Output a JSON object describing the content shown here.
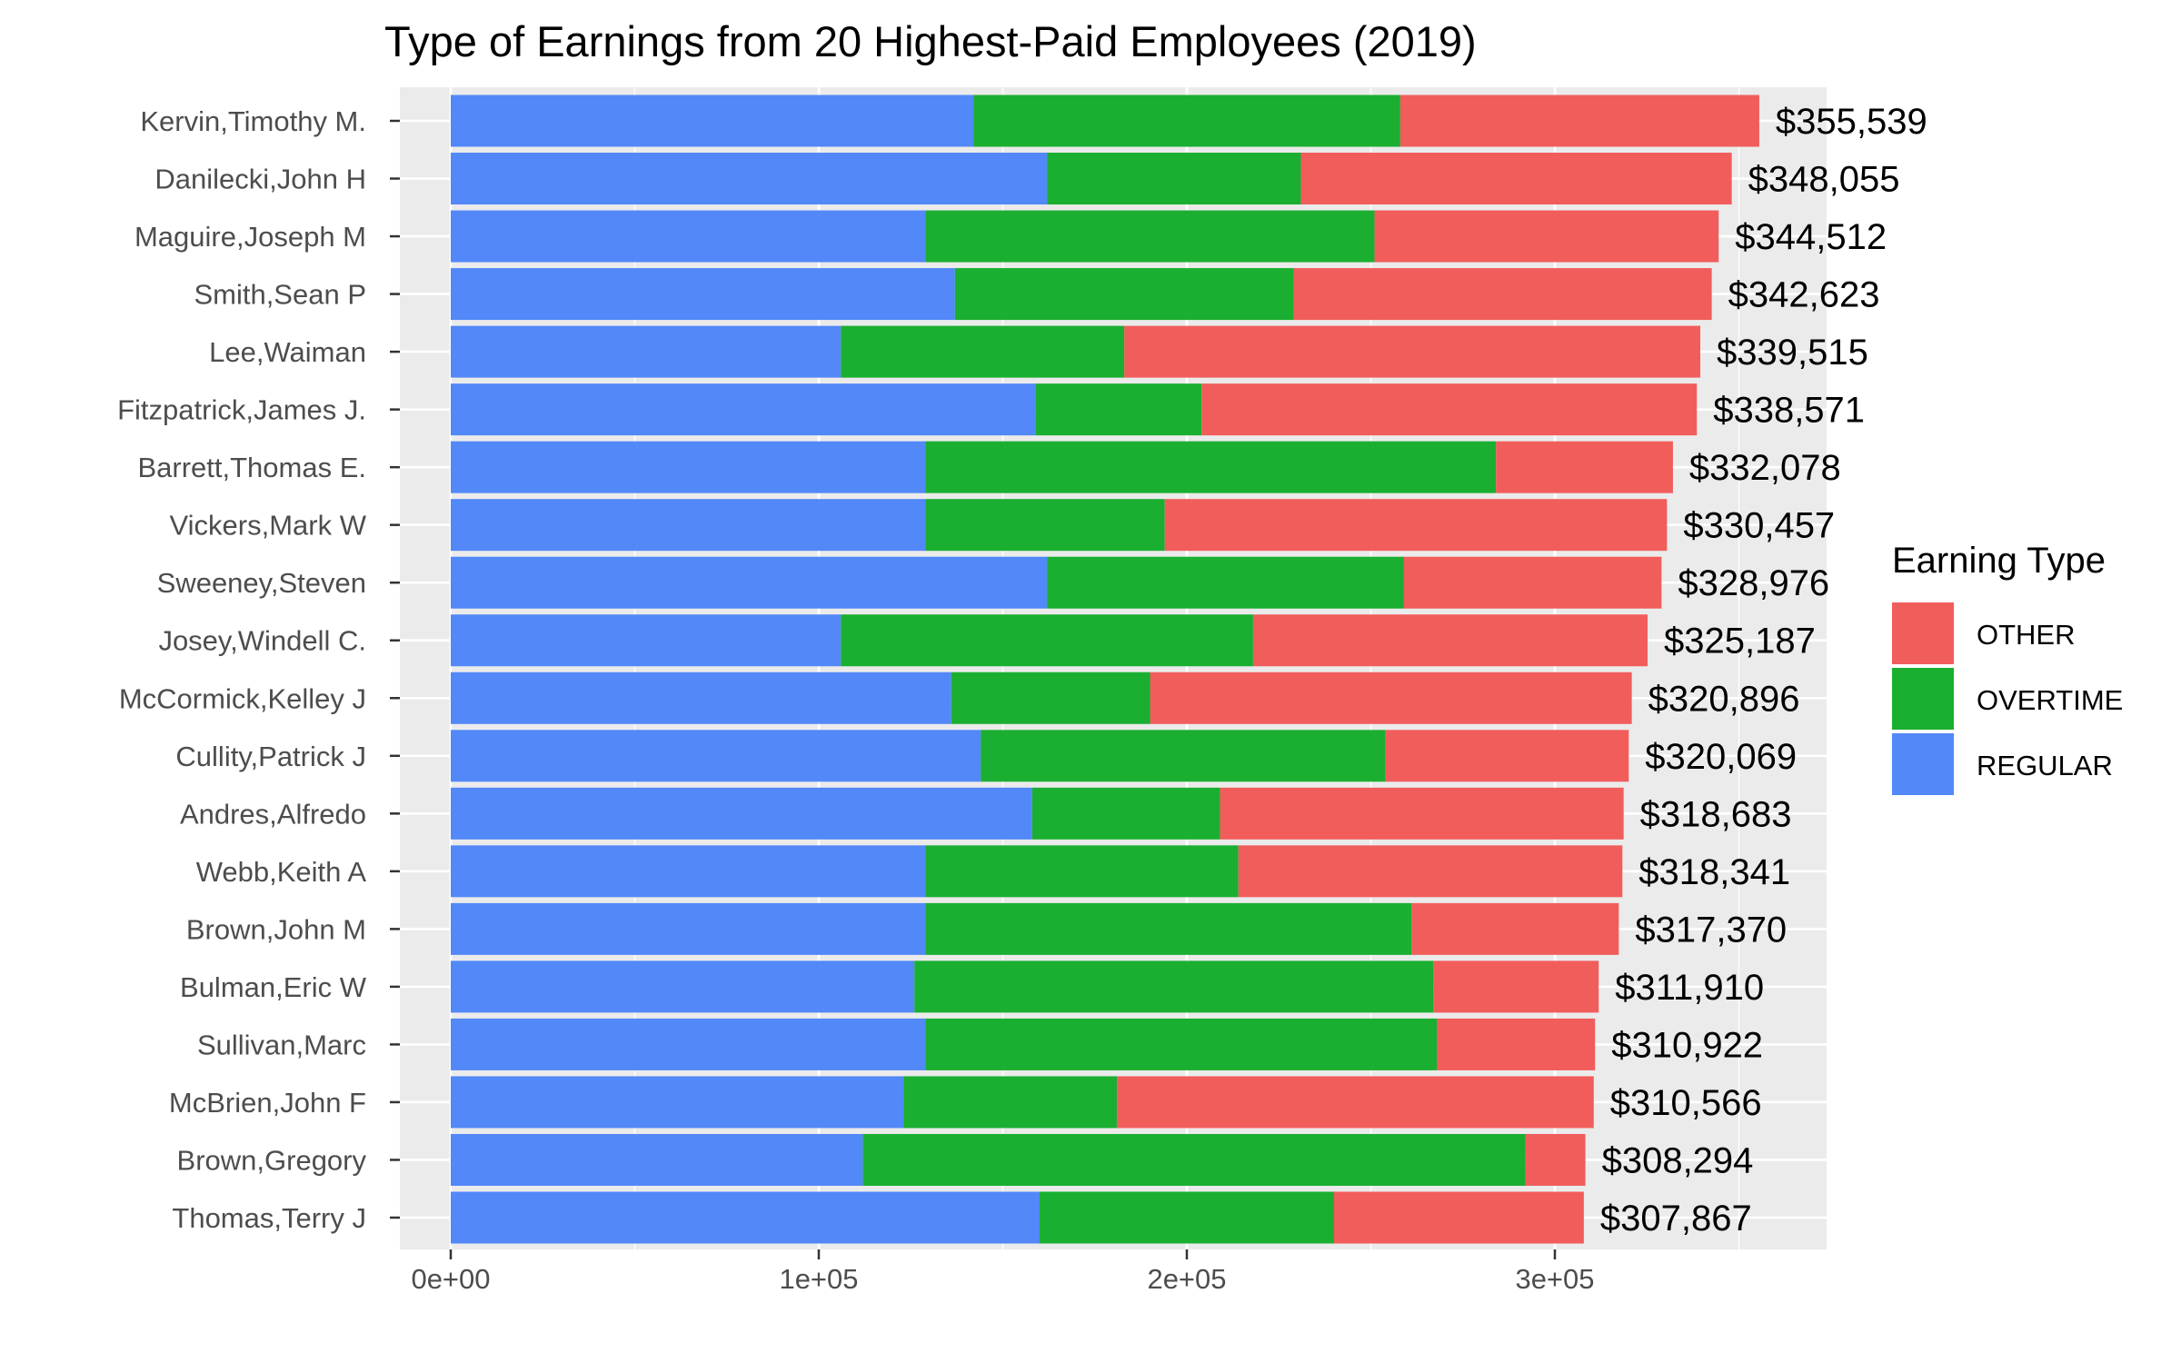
{
  "chart_data": {
    "type": "bar",
    "orientation": "horizontal",
    "stacked": true,
    "title": "Type of Earnings from 20 Highest-Paid Employees (2019)",
    "xlabel": "",
    "ylabel": "",
    "xlim": [
      0,
      375000
    ],
    "x_ticks": [
      0,
      100000,
      200000,
      300000
    ],
    "x_tick_labels": [
      "0e+00",
      "1e+05",
      "2e+05",
      "3e+05"
    ],
    "grid": true,
    "legend": {
      "title": "Earning Type",
      "position": "right"
    },
    "categories": [
      "Kervin,Timothy M.",
      "Danilecki,John H",
      "Maguire,Joseph M",
      "Smith,Sean P",
      "Lee,Waiman",
      "Fitzpatrick,James J.",
      "Barrett,Thomas E.",
      "Vickers,Mark W",
      "Sweeney,Steven",
      "Josey,Windell C.",
      "McCormick,Kelley J",
      "Cullity,Patrick J",
      "Andres,Alfredo",
      "Webb,Keith A",
      "Brown,John M",
      "Bulman,Eric W",
      "Sullivan,Marc",
      "McBrien,John F",
      "Brown,Gregory",
      "Thomas,Terry J"
    ],
    "series": [
      {
        "name": "REGULAR",
        "color": "#5288F8",
        "values": [
          142000,
          162000,
          129000,
          137000,
          106000,
          159000,
          129000,
          129000,
          162000,
          106000,
          136000,
          144000,
          158000,
          129000,
          129000,
          126000,
          129000,
          123000,
          112000,
          160000
        ]
      },
      {
        "name": "OVERTIME",
        "color": "#1AAF30",
        "values": [
          116000,
          69000,
          122000,
          92000,
          77000,
          45000,
          155000,
          65000,
          97000,
          112000,
          54000,
          110000,
          51000,
          85000,
          132000,
          141000,
          139000,
          58000,
          180000,
          80000
        ]
      },
      {
        "name": "OTHER",
        "color": "#F15D5B",
        "values": [
          97539,
          117055,
          93512,
          113623,
          156515,
          134571,
          48078,
          136457,
          69976,
          107187,
          130896,
          66069,
          109683,
          104341,
          56370,
          44910,
          42922,
          129566,
          16294,
          67867
        ]
      }
    ],
    "legend_order": [
      "OTHER",
      "OVERTIME",
      "REGULAR"
    ],
    "totals": [
      355539,
      348055,
      344512,
      342623,
      339515,
      338571,
      332078,
      330457,
      328976,
      325187,
      320896,
      320069,
      318683,
      318341,
      317370,
      311910,
      310922,
      310566,
      308294,
      307867
    ],
    "total_labels": [
      "$355,539",
      "$348,055",
      "$344,512",
      "$342,623",
      "$339,515",
      "$338,571",
      "$332,078",
      "$330,457",
      "$328,976",
      "$325,187",
      "$320,896",
      "$320,069",
      "$318,683",
      "$318,341",
      "$317,370",
      "$311,910",
      "$310,922",
      "$310,566",
      "$308,294",
      "$307,867"
    ]
  }
}
